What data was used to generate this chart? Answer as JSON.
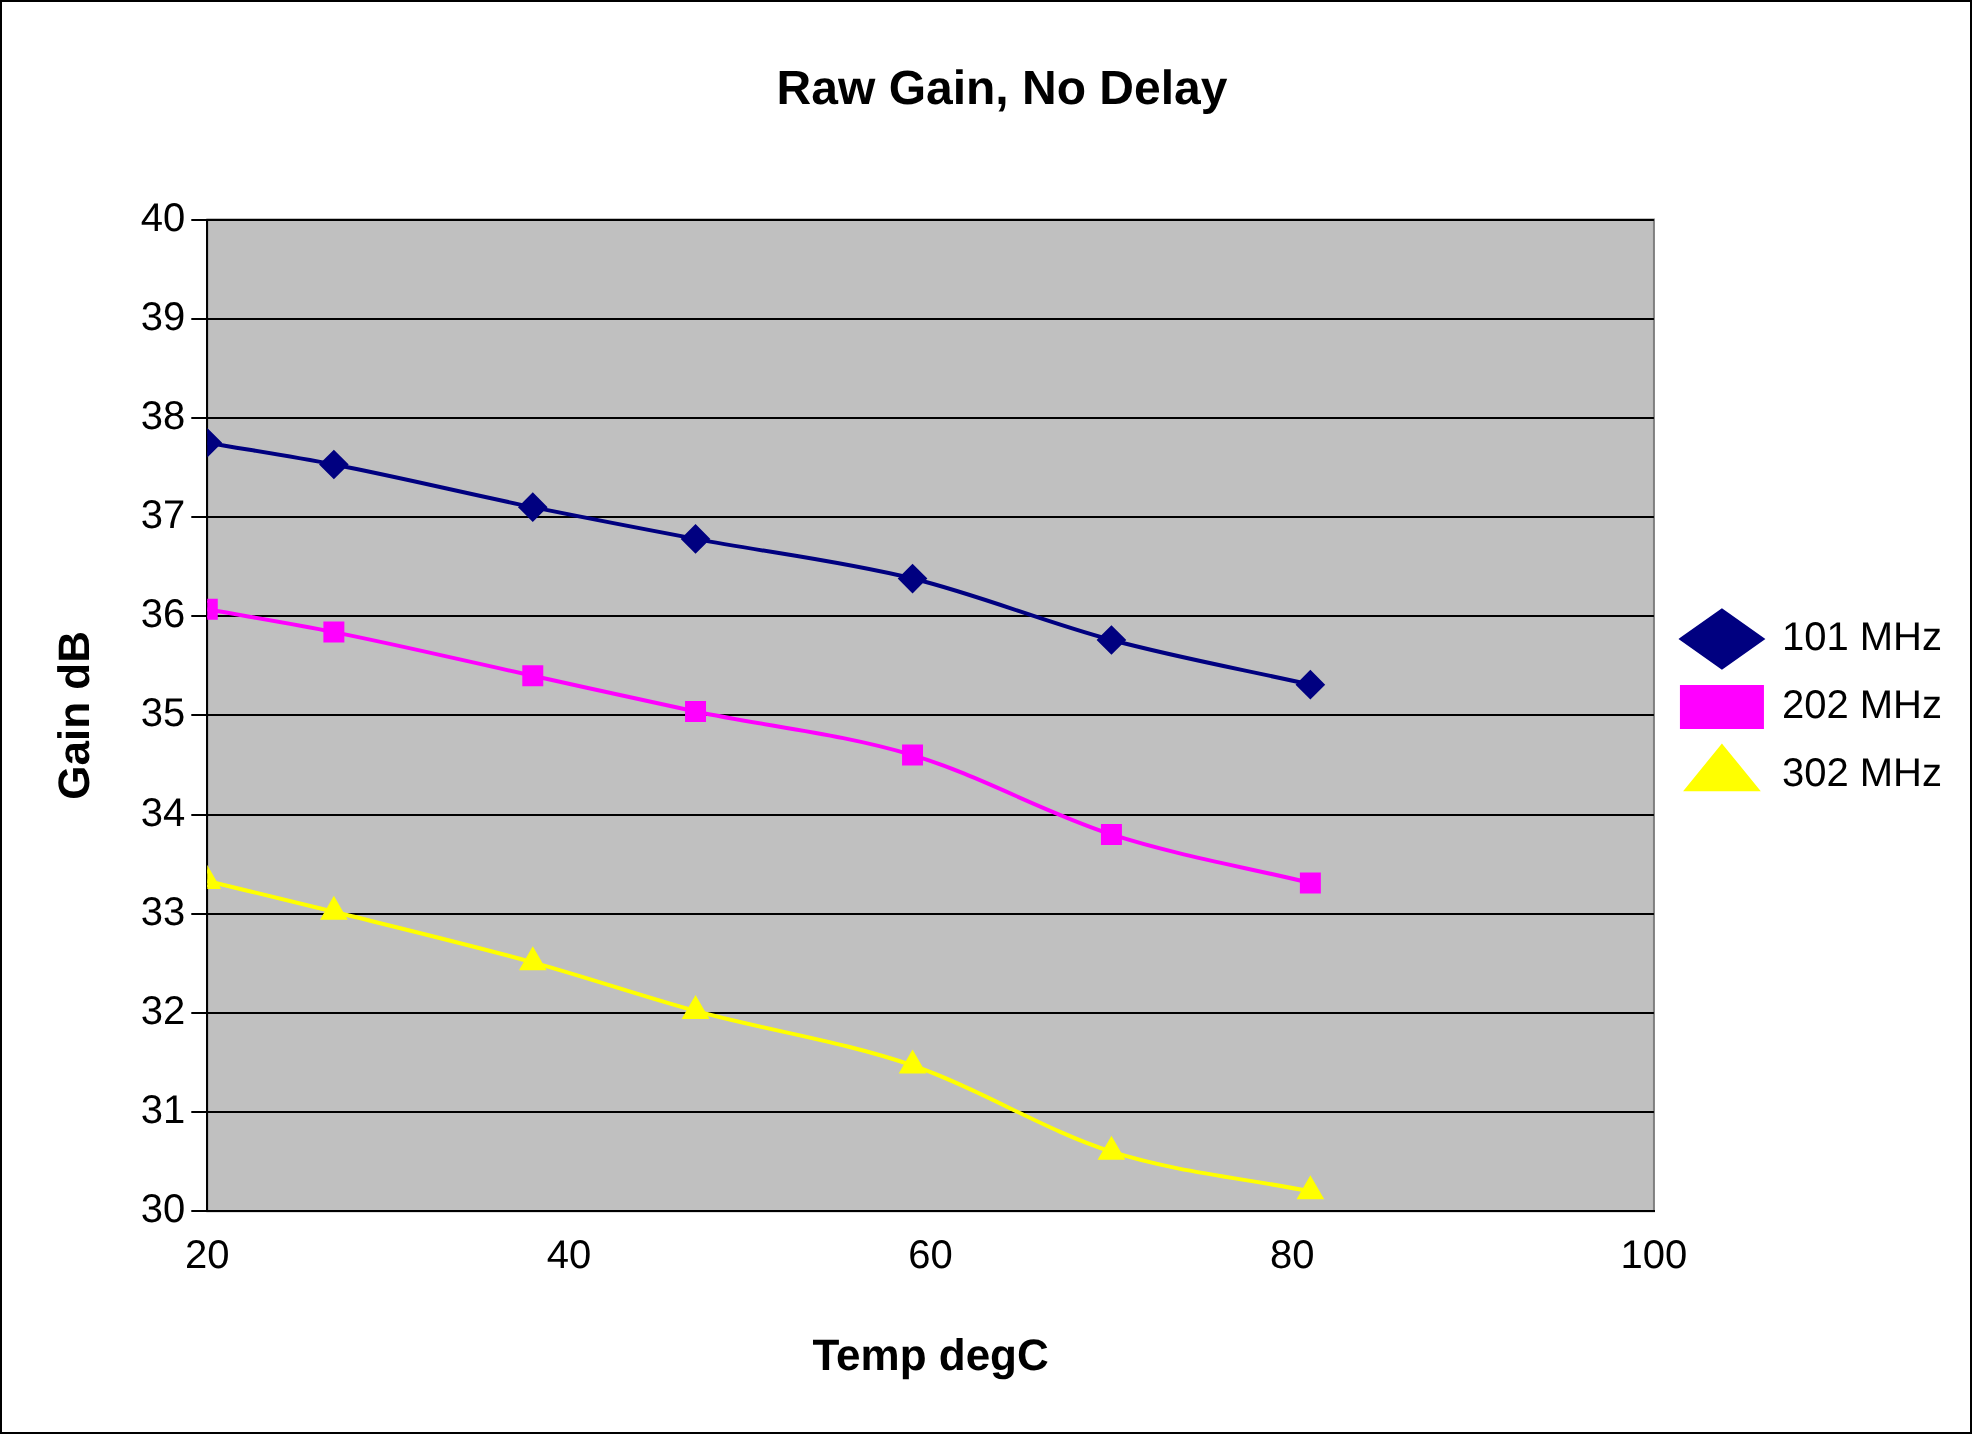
{
  "chart_data": {
    "type": "line",
    "title": "Raw Gain, No Delay",
    "xlabel": "Temp degC",
    "ylabel": "Gain dB",
    "x": [
      20,
      27,
      38,
      47,
      59,
      70,
      81
    ],
    "series": [
      {
        "name": "101 MHz",
        "color": "#000080",
        "marker": "diamond",
        "values": [
          37.75,
          37.53,
          37.1,
          36.78,
          36.38,
          35.76,
          35.31
        ]
      },
      {
        "name": "202 MHz",
        "color": "#ff00ff",
        "marker": "square",
        "values": [
          36.07,
          35.84,
          35.4,
          35.04,
          34.6,
          33.8,
          33.31
        ]
      },
      {
        "name": "302 MHz",
        "color": "#ffff00",
        "marker": "triangle",
        "values": [
          33.33,
          33.02,
          32.51,
          32.02,
          31.47,
          30.6,
          30.2
        ]
      }
    ],
    "xlim": [
      20,
      100
    ],
    "xticks": [
      20,
      40,
      60,
      80,
      100
    ],
    "ylim": [
      30,
      40
    ],
    "yticks": [
      30,
      31,
      32,
      33,
      34,
      35,
      36,
      37,
      38,
      39,
      40
    ],
    "grid": "y",
    "legend": "right"
  }
}
